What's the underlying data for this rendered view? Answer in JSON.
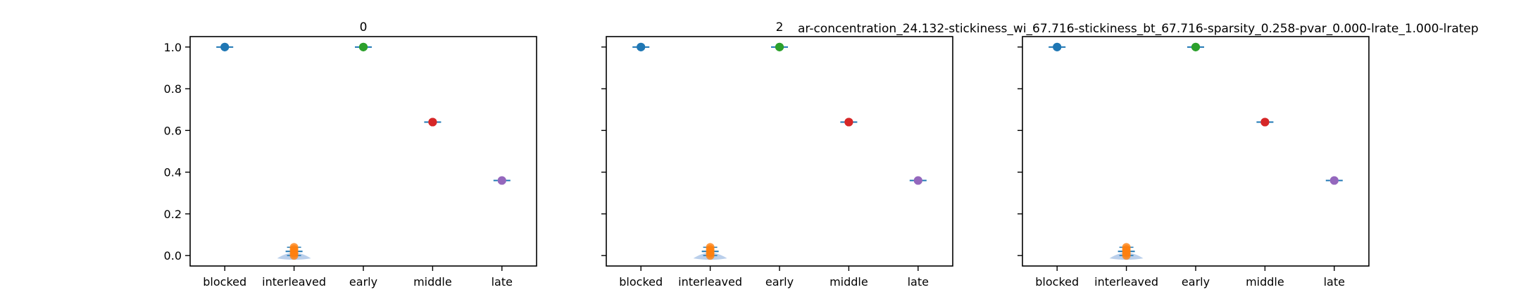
{
  "figure": {
    "title": "ar-concentration_24.132-stickiness_wi_67.716-stickiness_bt_67.716-sparsity_0.258-pvar_0.000-lrate_1.000-lratep"
  },
  "colors": {
    "blocked": "#1f77b4",
    "interleaved": "#ff7f0e",
    "early": "#2ca02c",
    "middle": "#d62728",
    "late": "#9467bd",
    "violin_fill": "#aec7e8",
    "whisker": "#1f77b4"
  },
  "chart_data": [
    {
      "type": "violin-strip",
      "title": "0",
      "categories": [
        "blocked",
        "interleaved",
        "early",
        "middle",
        "late"
      ],
      "ylim": [
        -0.05,
        1.05
      ],
      "yticks": [
        "0.0",
        "0.2",
        "0.4",
        "0.6",
        "0.8",
        "1.0"
      ],
      "show_ytick_labels": true,
      "grid": false,
      "series": [
        {
          "category": "blocked",
          "values": [
            1.0,
            1.0,
            1.0
          ],
          "median": 1.0,
          "min": 1.0,
          "max": 1.0
        },
        {
          "category": "interleaved",
          "values": [
            0.0,
            0.01,
            0.02,
            0.03,
            0.04
          ],
          "median": 0.02,
          "min": 0.0,
          "max": 0.04
        },
        {
          "category": "early",
          "values": [
            1.0,
            1.0,
            1.0
          ],
          "median": 1.0,
          "min": 1.0,
          "max": 1.0
        },
        {
          "category": "middle",
          "values": [
            0.64,
            0.64,
            0.64
          ],
          "median": 0.64,
          "min": 0.64,
          "max": 0.64
        },
        {
          "category": "late",
          "values": [
            0.36,
            0.36,
            0.36
          ],
          "median": 0.36,
          "min": 0.36,
          "max": 0.36
        }
      ]
    },
    {
      "type": "violin-strip",
      "title": "2",
      "categories": [
        "blocked",
        "interleaved",
        "early",
        "middle",
        "late"
      ],
      "ylim": [
        -0.05,
        1.05
      ],
      "yticks": [
        "0.0",
        "0.2",
        "0.4",
        "0.6",
        "0.8",
        "1.0"
      ],
      "show_ytick_labels": false,
      "grid": false,
      "series": [
        {
          "category": "blocked",
          "values": [
            1.0,
            1.0,
            1.0
          ],
          "median": 1.0,
          "min": 1.0,
          "max": 1.0
        },
        {
          "category": "interleaved",
          "values": [
            0.0,
            0.01,
            0.02,
            0.03,
            0.04
          ],
          "median": 0.02,
          "min": 0.0,
          "max": 0.04
        },
        {
          "category": "early",
          "values": [
            1.0,
            1.0,
            1.0
          ],
          "median": 1.0,
          "min": 1.0,
          "max": 1.0
        },
        {
          "category": "middle",
          "values": [
            0.64,
            0.64,
            0.64
          ],
          "median": 0.64,
          "min": 0.64,
          "max": 0.64
        },
        {
          "category": "late",
          "values": [
            0.36,
            0.36,
            0.36
          ],
          "median": 0.36,
          "min": 0.36,
          "max": 0.36
        }
      ]
    },
    {
      "type": "violin-strip",
      "title": "",
      "categories": [
        "blocked",
        "interleaved",
        "early",
        "middle",
        "late"
      ],
      "ylim": [
        -0.05,
        1.05
      ],
      "yticks": [
        "0.0",
        "0.2",
        "0.4",
        "0.6",
        "0.8",
        "1.0"
      ],
      "show_ytick_labels": false,
      "grid": false,
      "series": [
        {
          "category": "blocked",
          "values": [
            1.0,
            1.0,
            1.0
          ],
          "median": 1.0,
          "min": 1.0,
          "max": 1.0
        },
        {
          "category": "interleaved",
          "values": [
            0.0,
            0.01,
            0.02,
            0.03,
            0.04
          ],
          "median": 0.02,
          "min": 0.0,
          "max": 0.04
        },
        {
          "category": "early",
          "values": [
            1.0,
            1.0,
            1.0
          ],
          "median": 1.0,
          "min": 1.0,
          "max": 1.0
        },
        {
          "category": "middle",
          "values": [
            0.64,
            0.64,
            0.64
          ],
          "median": 0.64,
          "min": 0.64,
          "max": 0.64
        },
        {
          "category": "late",
          "values": [
            0.36,
            0.36,
            0.36
          ],
          "median": 0.36,
          "min": 0.36,
          "max": 0.36
        }
      ]
    }
  ]
}
